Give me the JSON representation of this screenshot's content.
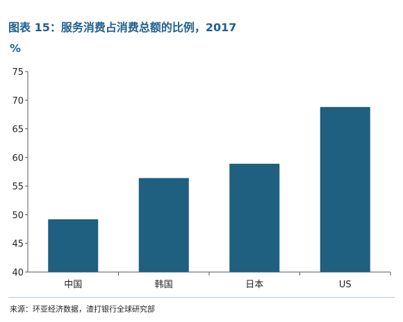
{
  "title": "图表 15：服务消费占消费总额的比例，2017",
  "unit_label": "%",
  "source": "来源：环亚经济数据，渣打银行全球研究部",
  "colors": {
    "bar": "#1f5f7f",
    "title": "#1f5f8f",
    "axis": "#555555"
  },
  "chart_data": {
    "type": "bar",
    "categories": [
      "中国",
      "韩国",
      "日本",
      "US"
    ],
    "values": [
      49.2,
      56.4,
      58.9,
      68.8
    ],
    "ylim": [
      40,
      75
    ],
    "yticks": [
      40,
      45,
      50,
      55,
      60,
      65,
      70,
      75
    ],
    "xlabel": "",
    "ylabel": "%",
    "grid": false,
    "legend": "none"
  }
}
